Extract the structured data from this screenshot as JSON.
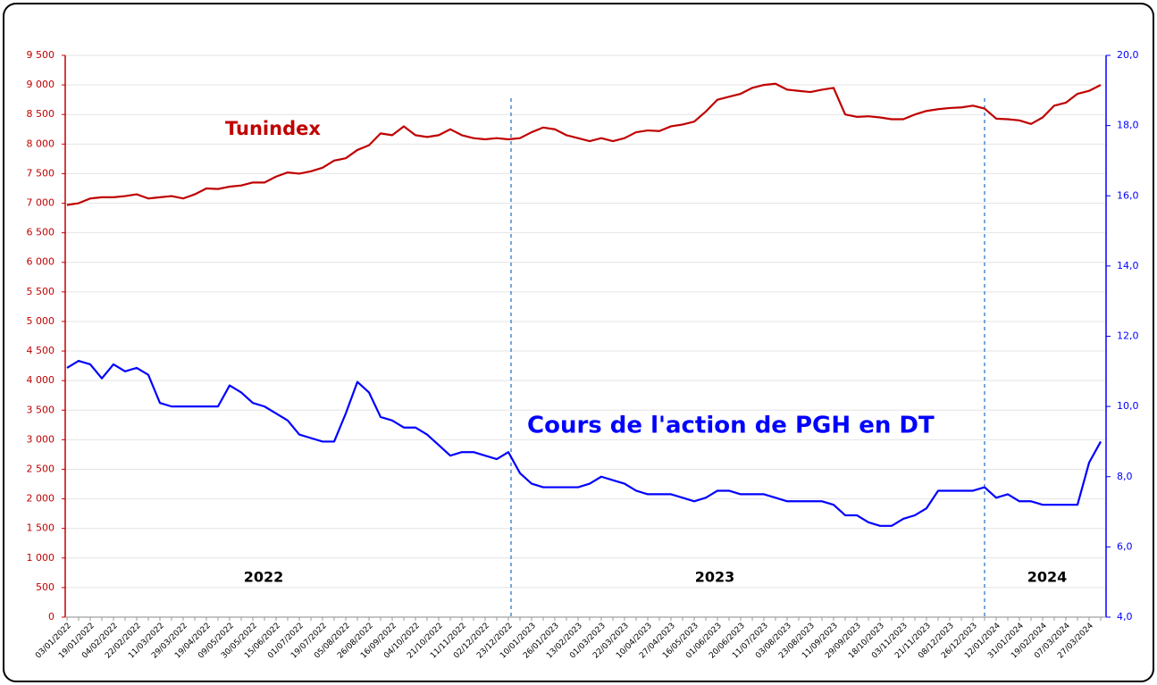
{
  "chart_data": {
    "type": "line",
    "categories": [
      "03/01/2022",
      null,
      "19/01/2022",
      null,
      "04/02/2022",
      null,
      "22/02/2022",
      null,
      "11/03/2022",
      null,
      "29/03/2022",
      null,
      "19/04/2022",
      null,
      "09/05/2022",
      null,
      "30/05/2022",
      null,
      "15/06/2022",
      null,
      "01/07/2022",
      null,
      "19/07/2022",
      null,
      "05/08/2022",
      null,
      "26/08/2022",
      null,
      "16/09/2022",
      null,
      "04/10/2022",
      null,
      "21/10/2022",
      null,
      "11/11/2022",
      null,
      "02/12/2022",
      null,
      "23/12/2022",
      null,
      "10/01/2023",
      null,
      "26/01/2023",
      null,
      "13/02/2023",
      null,
      "01/03/2023",
      null,
      "22/03/2023",
      null,
      "10/04/2023",
      null,
      "27/04/2023",
      null,
      "16/05/2023",
      null,
      "01/06/2023",
      null,
      "20/06/2023",
      null,
      "11/07/2023",
      null,
      "03/08/2023",
      null,
      "23/08/2023",
      null,
      "11/09/2023",
      null,
      "29/09/2023",
      null,
      "18/10/2023",
      null,
      "03/11/2023",
      null,
      "21/11/2023",
      null,
      "08/12/2023",
      null,
      "26/12/2023",
      null,
      "12/01/2024",
      null,
      "31/01/2024",
      null,
      "19/02/2024",
      null,
      "07/03/2024",
      null,
      "27/03/2024",
      null
    ],
    "series": [
      {
        "name": "Tunindex",
        "color": "#c00000",
        "axis": "y",
        "values": [
          6970,
          7000,
          7080,
          7100,
          7100,
          7120,
          7150,
          7080,
          7100,
          7120,
          7080,
          7150,
          7250,
          7240,
          7280,
          7300,
          7350,
          7350,
          7450,
          7520,
          7500,
          7540,
          7600,
          7720,
          7760,
          7900,
          7980,
          8180,
          8150,
          8300,
          8150,
          8120,
          8150,
          8250,
          8150,
          8100,
          8080,
          8100,
          8080,
          8100,
          8200,
          8280,
          8250,
          8150,
          8100,
          8050,
          8100,
          8050,
          8100,
          8200,
          8230,
          8220,
          8300,
          8330,
          8380,
          8550,
          8750,
          8800,
          8850,
          8950,
          9000,
          9020,
          8920,
          8900,
          8880,
          8920,
          8950,
          8500,
          8460,
          8470,
          8450,
          8420,
          8420,
          8500,
          8560,
          8590,
          8610,
          8620,
          8650,
          8600,
          8430,
          8420,
          8400,
          8340,
          8450,
          8650,
          8700,
          8850,
          8900,
          9000
        ]
      },
      {
        "name": "Cours de l'action de PGH en DT",
        "color": "#0000ff",
        "axis": "y2",
        "values": [
          11.1,
          11.3,
          11.2,
          10.8,
          11.2,
          11.0,
          11.1,
          10.9,
          10.1,
          10.0,
          10.0,
          10.0,
          10.0,
          10.0,
          10.6,
          10.4,
          10.1,
          10.0,
          9.8,
          9.6,
          9.2,
          9.1,
          9.0,
          9.0,
          9.8,
          10.7,
          10.4,
          9.7,
          9.6,
          9.4,
          9.4,
          9.2,
          8.9,
          8.6,
          8.7,
          8.7,
          8.6,
          8.5,
          8.7,
          8.1,
          7.8,
          7.7,
          7.7,
          7.7,
          7.7,
          7.8,
          8.0,
          7.9,
          7.8,
          7.6,
          7.5,
          7.5,
          7.5,
          7.4,
          7.3,
          7.4,
          7.6,
          7.6,
          7.5,
          7.5,
          7.5,
          7.4,
          7.3,
          7.3,
          7.3,
          7.3,
          7.2,
          6.9,
          6.9,
          6.7,
          6.6,
          6.6,
          6.8,
          6.9,
          7.1,
          7.6,
          7.6,
          7.6,
          7.6,
          7.7,
          7.4,
          7.5,
          7.3,
          7.3,
          7.2,
          7.2,
          7.2,
          7.2,
          8.4,
          9.0
        ]
      }
    ],
    "annotations": [
      "Tunindex",
      "Cours de l'action de PGH en DT",
      "2022",
      "2023",
      "2024"
    ],
    "ylim": [
      0,
      9500
    ],
    "yticks": [
      0,
      500,
      {
        "value": 1000,
        "label": "1 000"
      },
      {
        "value": 1500,
        "label": "1 500"
      },
      {
        "value": 2000,
        "label": "2 000"
      },
      {
        "value": 2500,
        "label": "2 500"
      },
      {
        "value": 3000,
        "label": "3 000"
      },
      {
        "value": 3500,
        "label": "3 500"
      },
      {
        "value": 4000,
        "label": "4 000"
      },
      {
        "value": 4500,
        "label": "4 500"
      },
      {
        "value": 5000,
        "label": "5 000"
      },
      {
        "value": 5500,
        "label": "5 500"
      },
      {
        "value": 6000,
        "label": "6 000"
      },
      {
        "value": 6500,
        "label": "6 500"
      },
      {
        "value": 7000,
        "label": "7 000"
      },
      {
        "value": 7500,
        "label": "7 500"
      },
      {
        "value": 8000,
        "label": "8 000"
      },
      {
        "value": 8500,
        "label": "8 500"
      },
      {
        "value": 9000,
        "label": "9 000"
      },
      {
        "value": 9500,
        "label": "9 500"
      }
    ],
    "y2lim": [
      4,
      20
    ],
    "y2ticks": [
      {
        "value": 4,
        "label": "4,0"
      },
      {
        "value": 6,
        "label": "6,0"
      },
      {
        "value": 8,
        "label": "8,0"
      },
      {
        "value": 10,
        "label": "10,0"
      },
      {
        "value": 12,
        "label": "12,0"
      },
      {
        "value": 14,
        "label": "14,0"
      },
      {
        "value": 16,
        "label": "16,0"
      },
      {
        "value": 18,
        "label": "18,0"
      },
      {
        "value": 20,
        "label": "20,0"
      }
    ],
    "grid": true
  }
}
